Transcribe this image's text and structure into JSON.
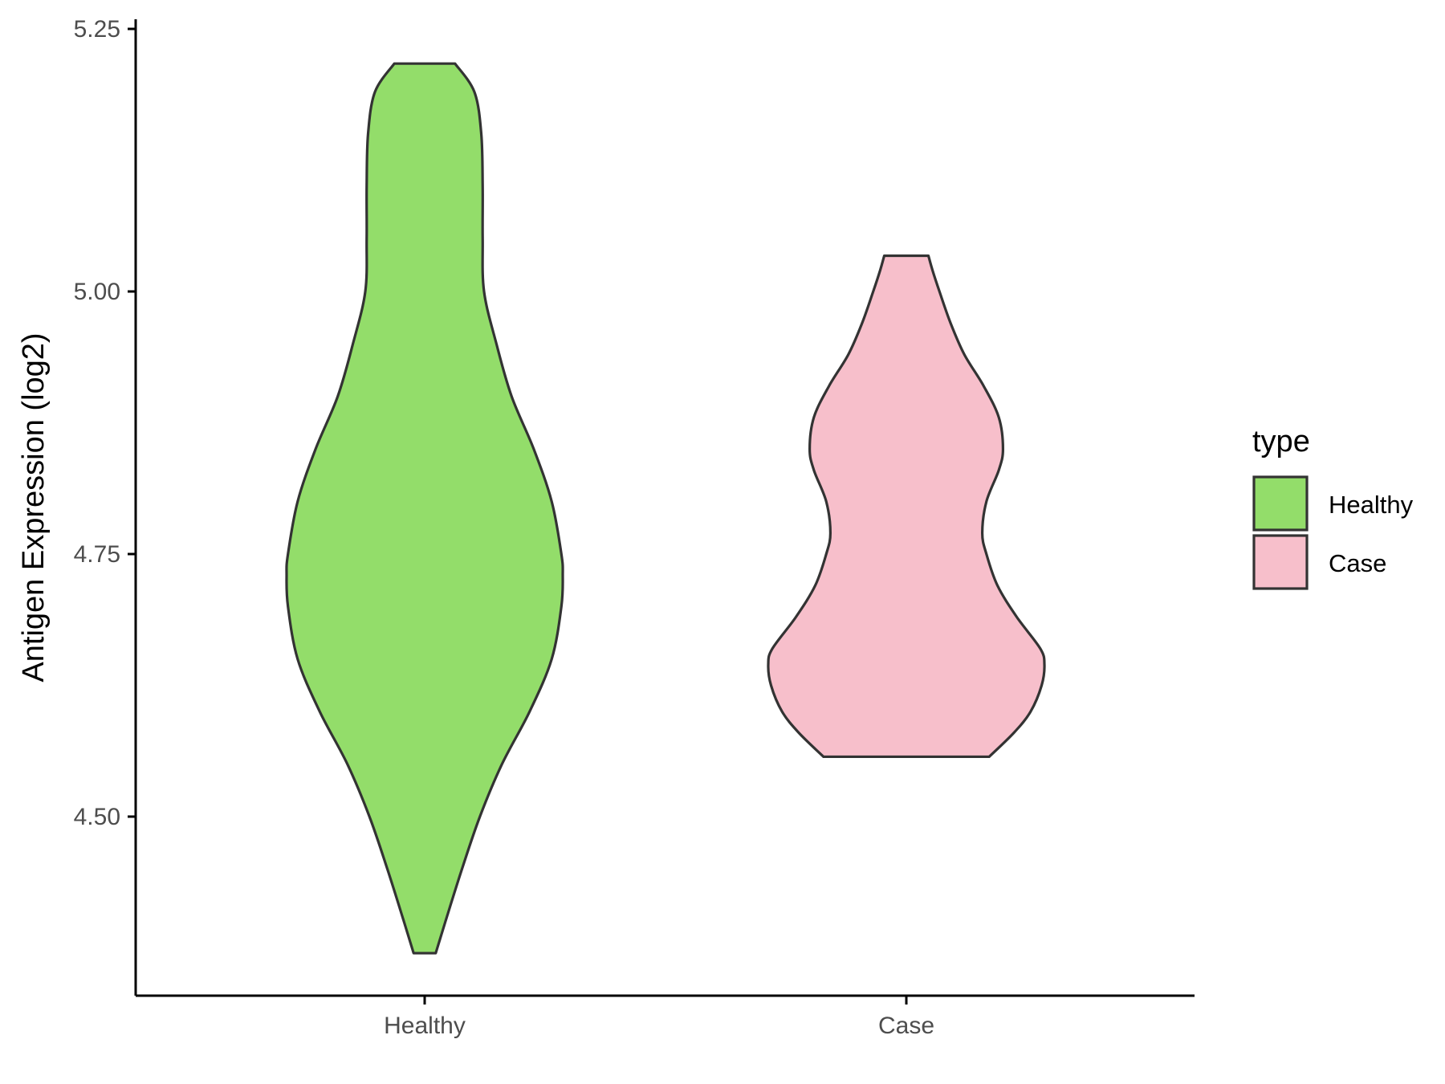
{
  "chart_data": {
    "type": "violin",
    "title": "",
    "xlabel": "",
    "ylabel": "Antigen Expression (log2)",
    "ylim": [
      4.33,
      5.26
    ],
    "y_ticks": [
      "4.50",
      "4.75",
      "5.00",
      "5.25"
    ],
    "y_tick_values": [
      4.5,
      4.75,
      5.0,
      5.25
    ],
    "categories": [
      "Healthy",
      "Case"
    ],
    "legend": {
      "title": "type",
      "position": "right"
    },
    "grid": false,
    "series": [
      {
        "name": "Healthy",
        "color": "#93DD6A",
        "min": 4.37,
        "max": 5.217,
        "profile": [
          [
            4.37,
            0.08
          ],
          [
            4.4,
            0.15
          ],
          [
            4.45,
            0.27
          ],
          [
            4.5,
            0.4
          ],
          [
            4.55,
            0.56
          ],
          [
            4.6,
            0.76
          ],
          [
            4.65,
            0.92
          ],
          [
            4.7,
            0.99
          ],
          [
            4.73,
            1.0
          ],
          [
            4.75,
            0.99
          ],
          [
            4.8,
            0.92
          ],
          [
            4.85,
            0.79
          ],
          [
            4.9,
            0.63
          ],
          [
            4.95,
            0.52
          ],
          [
            5.0,
            0.43
          ],
          [
            5.05,
            0.42
          ],
          [
            5.1,
            0.42
          ],
          [
            5.15,
            0.41
          ],
          [
            5.19,
            0.36
          ],
          [
            5.217,
            0.22
          ]
        ]
      },
      {
        "name": "Case",
        "color": "#F7BFCB",
        "min": 4.557,
        "max": 5.034,
        "profile": [
          [
            4.557,
            0.6
          ],
          [
            4.58,
            0.78
          ],
          [
            4.6,
            0.9
          ],
          [
            4.625,
            0.98
          ],
          [
            4.645,
            1.0
          ],
          [
            4.66,
            0.97
          ],
          [
            4.69,
            0.8
          ],
          [
            4.72,
            0.66
          ],
          [
            4.75,
            0.58
          ],
          [
            4.77,
            0.55
          ],
          [
            4.8,
            0.58
          ],
          [
            4.83,
            0.67
          ],
          [
            4.85,
            0.7
          ],
          [
            4.88,
            0.67
          ],
          [
            4.91,
            0.56
          ],
          [
            4.94,
            0.42
          ],
          [
            4.97,
            0.32
          ],
          [
            5.0,
            0.24
          ],
          [
            5.02,
            0.19
          ],
          [
            5.034,
            0.16
          ]
        ]
      }
    ]
  }
}
